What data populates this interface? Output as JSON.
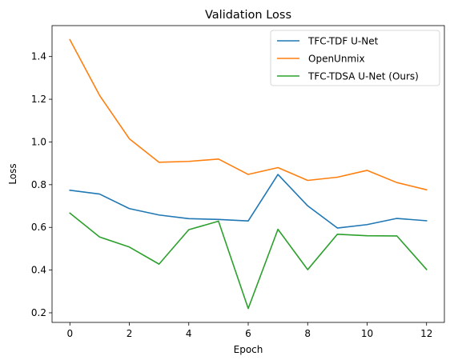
{
  "chart_data": {
    "type": "line",
    "title": "Validation Loss",
    "xlabel": "Epoch",
    "ylabel": "Loss",
    "xlim": [
      -0.6,
      12.6
    ],
    "ylim": [
      0.155,
      1.545
    ],
    "xticks": [
      0,
      2,
      4,
      6,
      8,
      10,
      12
    ],
    "yticks": [
      0.2,
      0.4,
      0.6,
      0.8,
      1.0,
      1.2,
      1.4
    ],
    "ytick_labels": [
      "0.2",
      "0.4",
      "0.6",
      "0.8",
      "1.0",
      "1.2",
      "1.4"
    ],
    "x": [
      0,
      1,
      2,
      3,
      4,
      5,
      6,
      7,
      8,
      9,
      10,
      11,
      12
    ],
    "legend_position": "top-right",
    "grid": false,
    "series": [
      {
        "name": "TFC-TDF U-Net",
        "color": "#1f77b4",
        "values": [
          0.774,
          0.756,
          0.688,
          0.658,
          0.641,
          0.637,
          0.63,
          0.848,
          0.701,
          0.597,
          0.613,
          0.642,
          0.631
        ]
      },
      {
        "name": "OpenUnmix",
        "color": "#ff7f0e",
        "values": [
          1.479,
          1.218,
          1.015,
          0.905,
          0.909,
          0.92,
          0.848,
          0.88,
          0.82,
          0.835,
          0.867,
          0.81,
          0.776
        ]
      },
      {
        "name": "TFC-TDSA U-Net (Ours)",
        "color": "#2ca02c",
        "values": [
          0.667,
          0.555,
          0.508,
          0.428,
          0.589,
          0.629,
          0.22,
          0.591,
          0.402,
          0.568,
          0.561,
          0.56,
          0.403
        ]
      }
    ]
  }
}
